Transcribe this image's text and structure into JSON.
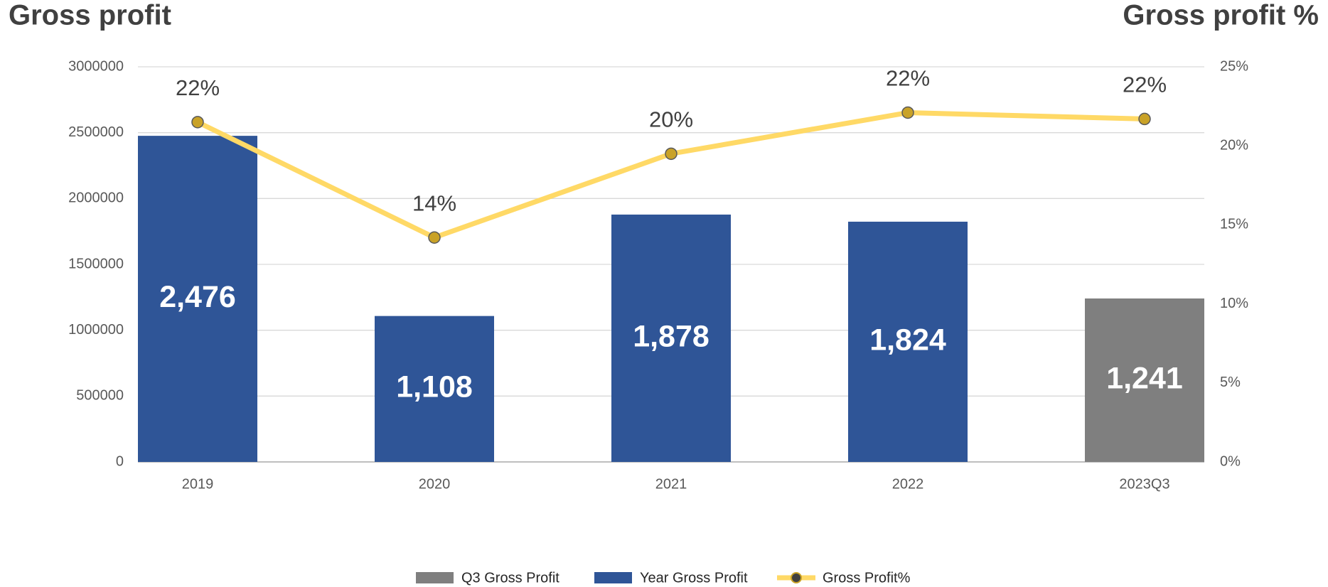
{
  "chart_data": {
    "type": "bar",
    "title": "Gross profit",
    "y2_title": "Gross profit %",
    "categories": [
      "2019",
      "2020",
      "2021",
      "2022",
      "2023Q3"
    ],
    "series": [
      {
        "name": "Q3 Gross Profit",
        "type": "bar",
        "color": "#7f7f7f",
        "values": [
          null,
          null,
          null,
          null,
          1241000
        ],
        "value_labels": [
          null,
          null,
          null,
          null,
          "1,241"
        ]
      },
      {
        "name": "Year Gross Profit",
        "type": "bar",
        "color": "#2f5597",
        "values": [
          2476000,
          1108000,
          1878000,
          1824000,
          null
        ],
        "value_labels": [
          "2,476",
          "1,108",
          "1,878",
          "1,824",
          null
        ]
      },
      {
        "name": "Gross Profit%",
        "type": "line",
        "axis": "y2",
        "color": "#ffd966",
        "marker_color": "#c9a227",
        "values": [
          21.5,
          14.2,
          19.5,
          22.1,
          21.7
        ],
        "value_labels": [
          "22%",
          "14%",
          "20%",
          "22%",
          "22%"
        ]
      }
    ],
    "ylim": [
      0,
      3000000
    ],
    "yticks": [
      0,
      500000,
      1000000,
      1500000,
      2000000,
      2500000,
      3000000
    ],
    "y2lim": [
      0,
      25
    ],
    "y2ticks": [
      {
        "value": 0,
        "label": "0%"
      },
      {
        "value": 5,
        "label": "5%"
      },
      {
        "value": 10,
        "label": "10%"
      },
      {
        "value": 15,
        "label": "15%"
      },
      {
        "value": 20,
        "label": "20%"
      },
      {
        "value": 25,
        "label": "25%"
      }
    ],
    "grid": true,
    "legend": "bottom"
  }
}
